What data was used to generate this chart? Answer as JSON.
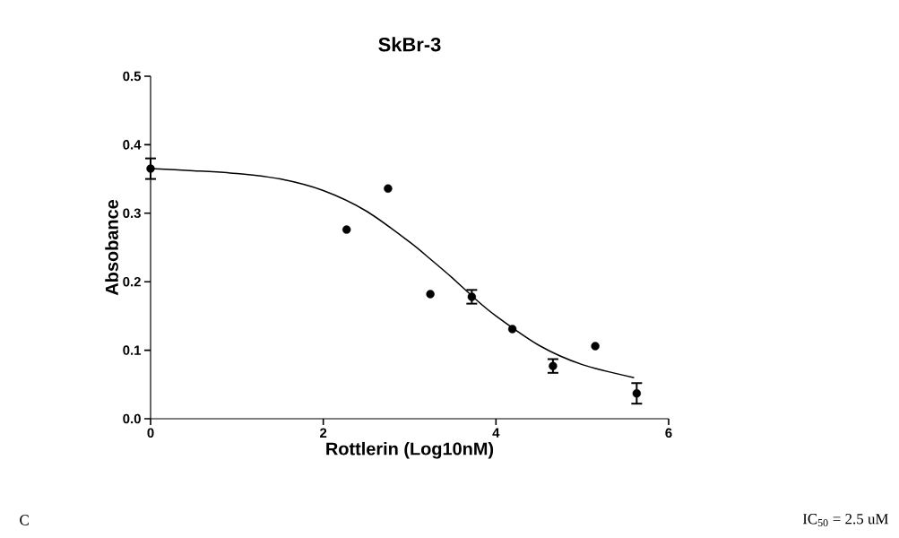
{
  "chart_data": {
    "type": "scatter",
    "title": "SkBr-3",
    "xlabel": "Rottlerin (Log10nM)",
    "ylabel": "Absobance",
    "xlim": [
      0,
      6
    ],
    "xticks": [
      0,
      2,
      4,
      6
    ],
    "ylim": [
      0,
      0.5
    ],
    "yticks": [
      {
        "value": 0,
        "label": "0.0"
      },
      0.1,
      0.2,
      0.3,
      0.4,
      0.5
    ],
    "series": [
      {
        "marker": "circle",
        "color": "#000000",
        "x": [
          0,
          2.27,
          2.75,
          3.24,
          3.72,
          4.19,
          4.66,
          5.15,
          5.63
        ],
        "values": [
          0.365,
          0.276,
          0.336,
          0.182,
          0.178,
          0.131,
          0.077,
          0.106,
          0.037
        ],
        "errors": [
          0.015,
          null,
          null,
          null,
          0.01,
          null,
          0.01,
          null,
          0.015
        ]
      },
      {
        "type": "line",
        "marker": "none",
        "line_style": "solid",
        "color": "#000000",
        "x": [
          0,
          0.5,
          1,
          1.5,
          2,
          2.5,
          3,
          3.25,
          3.5,
          3.75,
          4,
          4.5,
          5,
          5.6
        ],
        "values": [
          0.365,
          0.362,
          0.358,
          0.35,
          0.333,
          0.303,
          0.258,
          0.232,
          0.205,
          0.176,
          0.15,
          0.107,
          0.079,
          0.06
        ]
      }
    ],
    "annotations": [
      "C",
      "IC$_{50}$ = 2.5 uM"
    ]
  }
}
